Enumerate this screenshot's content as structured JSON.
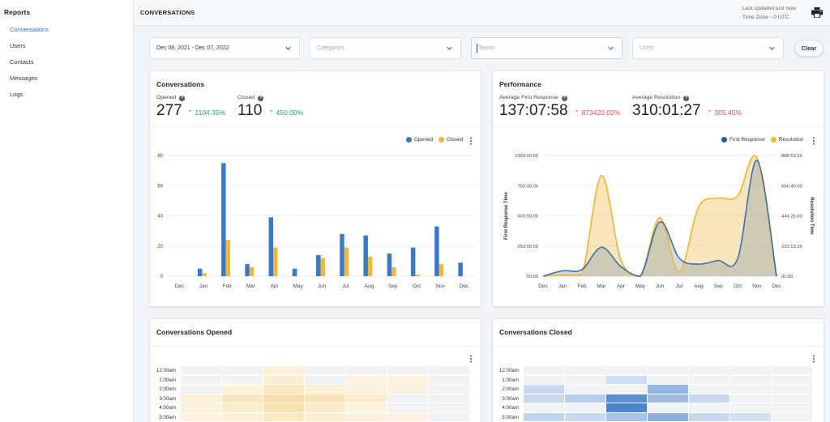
{
  "sidebar": {
    "title": "Reports",
    "items": [
      {
        "label": "Conversations",
        "active": true
      },
      {
        "label": "Users",
        "active": false
      },
      {
        "label": "Contacts",
        "active": false
      },
      {
        "label": "Messages",
        "active": false
      },
      {
        "label": "Logs",
        "active": false
      }
    ]
  },
  "header": {
    "title": "CONVERSATIONS",
    "last_updated": "Last updated just now",
    "timezone": "Time Zone - 0 UTC",
    "print_icon": "print-icon"
  },
  "filters": {
    "date_range": "Dec 08, 2021 - Dec 07, 2022",
    "categories_placeholder": "Categories",
    "teams_placeholder": "Teams",
    "users_placeholder": "Users",
    "clear_label": "Clear"
  },
  "conversations_card": {
    "title": "Conversations",
    "opened_label": "Opened",
    "opened_value": "277",
    "opened_change": "1104.35%",
    "closed_label": "Closed",
    "closed_value": "110",
    "closed_change": "450.00%",
    "legend_opened": "Opened",
    "legend_closed": "Closed"
  },
  "performance_card": {
    "title": "Performance",
    "afr_label": "Average First Response",
    "afr_value": "137:07:58",
    "afr_change": "873420.02%",
    "ar_label": "Average Resolution",
    "ar_value": "310:01:27",
    "ar_change": "305.45%",
    "legend_first_response": "First Response",
    "legend_resolution": "Resolution"
  },
  "opened_heatmap": {
    "title": "Conversations Opened",
    "rows": [
      "12:00am",
      "1:00am",
      "2:00am",
      "3:00am",
      "4:00am",
      "5:00am"
    ],
    "intensity": [
      [
        0.0,
        0.0,
        0.12,
        0.0,
        0.0,
        0.0,
        0.0
      ],
      [
        0.0,
        0.0,
        0.2,
        0.0,
        0.08,
        0.08,
        0.0
      ],
      [
        0.0,
        0.1,
        0.3,
        0.15,
        0.1,
        0.1,
        0.0
      ],
      [
        0.15,
        0.35,
        0.55,
        0.4,
        0.25,
        0.0,
        0.0
      ],
      [
        0.1,
        0.25,
        0.45,
        0.25,
        0.1,
        0.0,
        0.0
      ],
      [
        0.08,
        0.15,
        0.3,
        0.2,
        0.1,
        0.08,
        0.0
      ]
    ]
  },
  "closed_heatmap": {
    "title": "Conversations Closed",
    "rows": [
      "12:00am",
      "1:00am",
      "2:00am",
      "3:00am",
      "4:00am",
      "5:00am"
    ],
    "intensity": [
      [
        0.0,
        0.0,
        0.0,
        0.0,
        0.0,
        0.0,
        0.0
      ],
      [
        0.0,
        0.0,
        0.12,
        0.0,
        0.0,
        0.0,
        0.0
      ],
      [
        0.15,
        0.0,
        0.0,
        0.45,
        0.0,
        0.0,
        0.0
      ],
      [
        0.15,
        0.25,
        0.8,
        0.4,
        0.15,
        0.0,
        0.0
      ],
      [
        0.0,
        0.0,
        0.9,
        0.0,
        0.0,
        0.0,
        0.0
      ],
      [
        0.2,
        0.15,
        0.35,
        0.5,
        0.15,
        0.1,
        0.0
      ]
    ]
  },
  "colors": {
    "accent_blue": "#2f6fd1",
    "opened_blue": "#3b78c9",
    "closed_yellow": "#f1b840",
    "first_response_blue": "#1f5ea8",
    "resolution_yellow": "#f1b840",
    "green": "#2aa06a",
    "red": "#d9534f"
  },
  "chart_data": [
    {
      "type": "bar",
      "categories": [
        "Dec",
        "Jan",
        "Feb",
        "Mar",
        "Apr",
        "May",
        "Jun",
        "Jul",
        "Aug",
        "Sep",
        "Oct",
        "Nov",
        "Dec"
      ],
      "series": [
        {
          "name": "Opened",
          "values": [
            0,
            5,
            75,
            8,
            39,
            5,
            14,
            28,
            27,
            15,
            19,
            33,
            9
          ]
        },
        {
          "name": "Closed",
          "values": [
            0,
            2,
            24,
            6,
            19,
            0,
            12,
            19,
            13,
            6,
            1,
            8,
            0
          ]
        }
      ],
      "y_ticks": [
        0,
        20,
        40,
        60,
        80
      ],
      "ylim": [
        0,
        80
      ],
      "grid": true,
      "legend": "top-right"
    },
    {
      "type": "area",
      "categories": [
        "Dec",
        "Jan",
        "Feb",
        "Mar",
        "Apr",
        "May",
        "Jun",
        "Jul",
        "Aug",
        "Sep",
        "Oct",
        "Nov",
        "Dec"
      ],
      "series": [
        {
          "name": "First Response",
          "axis": "left",
          "values": [
            0,
            45,
            55,
            240,
            80,
            0,
            450,
            150,
            100,
            130,
            145,
            960,
            0
          ]
        },
        {
          "name": "Resolution",
          "axis": "right",
          "values": [
            0,
            10,
            15,
            740,
            120,
            0,
            430,
            30,
            510,
            575,
            590,
            870,
            0
          ]
        }
      ],
      "left_ticks": [
        "00:00",
        "250:00:00",
        "500:00:00",
        "750:00:00",
        "1000:00:00"
      ],
      "right_ticks": [
        "00:00",
        "222:13:20",
        "444:26:40",
        "666:40:00",
        "888:53:20"
      ],
      "ylabel": "First Response Time",
      "y2label": "Resolution Time",
      "ylim": [
        0,
        1000
      ],
      "y2lim": [
        0,
        888.9
      ],
      "grid": true,
      "legend": "top-right"
    }
  ]
}
